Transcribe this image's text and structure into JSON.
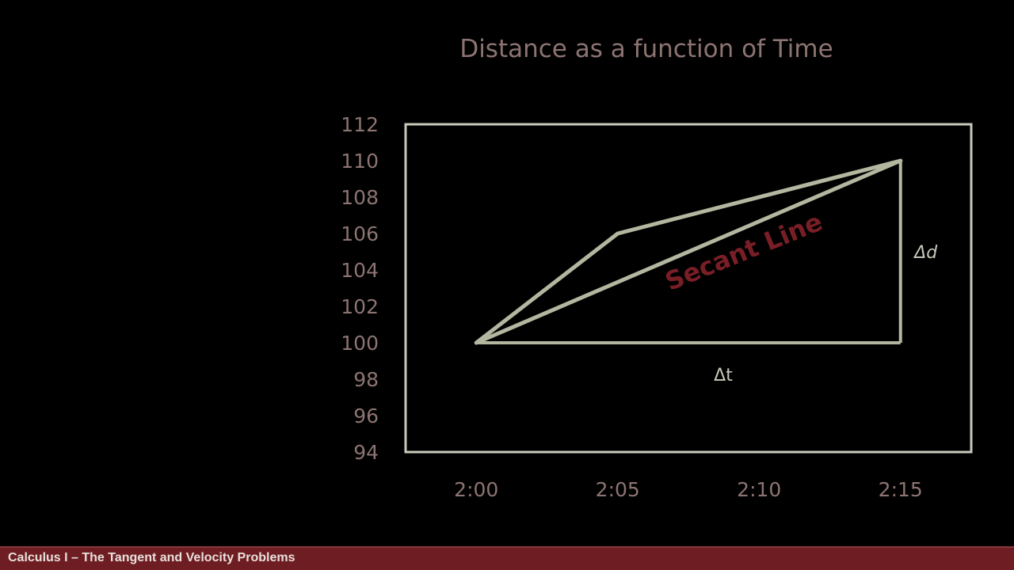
{
  "chart_data": {
    "type": "line",
    "title": "Distance as a function of Time",
    "categories": [
      "2:00",
      "2:05",
      "2:10",
      "2:15"
    ],
    "y_ticks": [
      112,
      110,
      108,
      106,
      104,
      102,
      100,
      98,
      96,
      94
    ],
    "ylim": [
      94,
      112
    ],
    "xlim": [
      -0.5,
      3.5
    ],
    "grid": false,
    "series": [
      {
        "values": [
          {
            "x": 0,
            "y": 100
          },
          {
            "x": 1,
            "y": 106
          },
          {
            "x": 3,
            "y": 110
          }
        ]
      }
    ],
    "secant_line": {
      "label": "Secant Line",
      "from": {
        "x": 0,
        "y": 100
      },
      "to": {
        "x": 3,
        "y": 110
      }
    },
    "delta_t": {
      "label": "Δt",
      "from": {
        "x": 0,
        "y": 100
      },
      "to": {
        "x": 3,
        "y": 100
      }
    },
    "delta_d": {
      "label": "Δd",
      "from": {
        "x": 3,
        "y": 100
      },
      "to": {
        "x": 3,
        "y": 110
      }
    },
    "colors": {
      "frame": "#c9c9bb",
      "lines": "#b3b7a0",
      "secant_text": "#7a1e26",
      "ticks": "#8c7472"
    }
  },
  "footer": {
    "text": "Calculus I – The Tangent and Velocity Problems",
    "bar_color": "#6e1e22"
  }
}
